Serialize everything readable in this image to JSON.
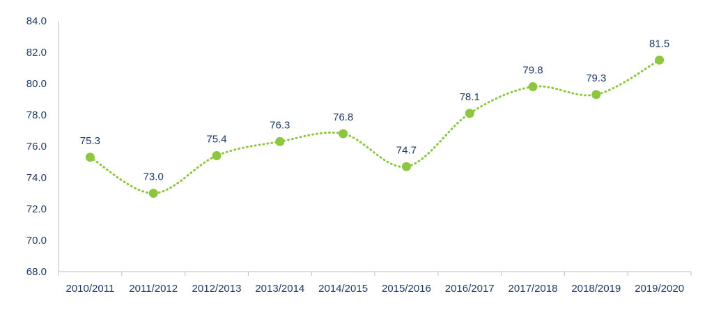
{
  "chart_data": {
    "type": "line",
    "title": "",
    "xlabel": "",
    "ylabel": "",
    "categories": [
      "2010/2011",
      "2011/2012",
      "2012/2013",
      "2013/2014",
      "2014/2015",
      "2015/2016",
      "2016/2017",
      "2017/2018",
      "2018/2019",
      "2019/2020"
    ],
    "series": [
      {
        "values": [
          75.3,
          73.0,
          75.4,
          76.3,
          76.8,
          74.7,
          78.1,
          79.8,
          79.3,
          81.5
        ]
      }
    ],
    "ylim": [
      68.0,
      84.0
    ],
    "yticks": [
      "68.0",
      "70.0",
      "72.0",
      "74.0",
      "76.0",
      "78.0",
      "80.0",
      "82.0",
      "84.0"
    ],
    "data_labels": [
      "75.3",
      "73.0",
      "75.4",
      "76.3",
      "76.8",
      "74.7",
      "78.1",
      "79.8",
      "79.3",
      "81.5"
    ],
    "grid": false,
    "legend": "none",
    "line_style": "dotted, smoothed",
    "colors": {
      "series": "#8dc63f",
      "text": "#1f3864",
      "axis": "#bfbfbf"
    }
  }
}
